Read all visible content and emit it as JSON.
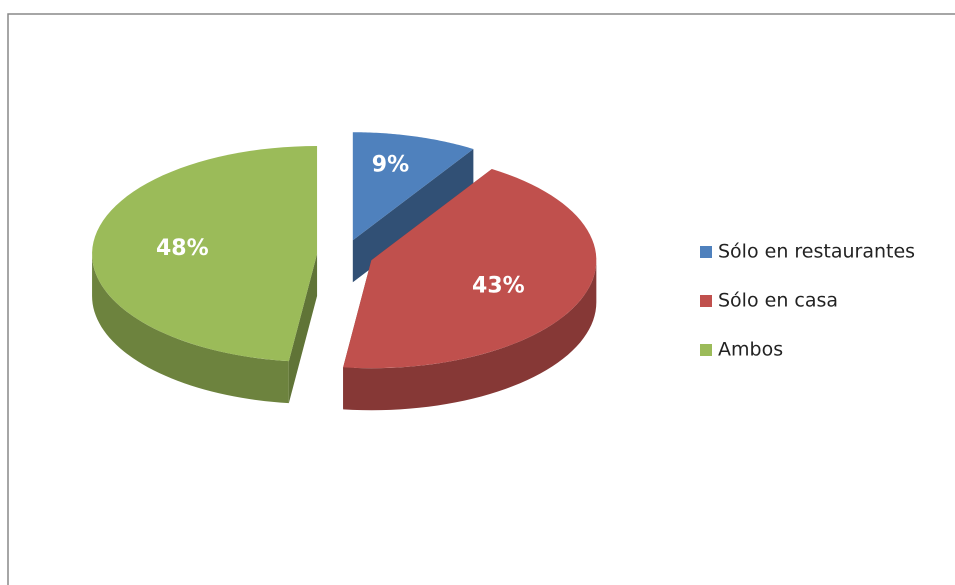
{
  "chart_data": {
    "type": "pie",
    "categories": [
      "Sólo en restaurantes",
      "Sólo en casa",
      "Ambos"
    ],
    "values": [
      9,
      43,
      48
    ],
    "value_labels": [
      "9%",
      "43%",
      "48%"
    ],
    "colors": [
      "#4f81bd",
      "#c0504d",
      "#9bbb59"
    ],
    "legend": "right"
  }
}
